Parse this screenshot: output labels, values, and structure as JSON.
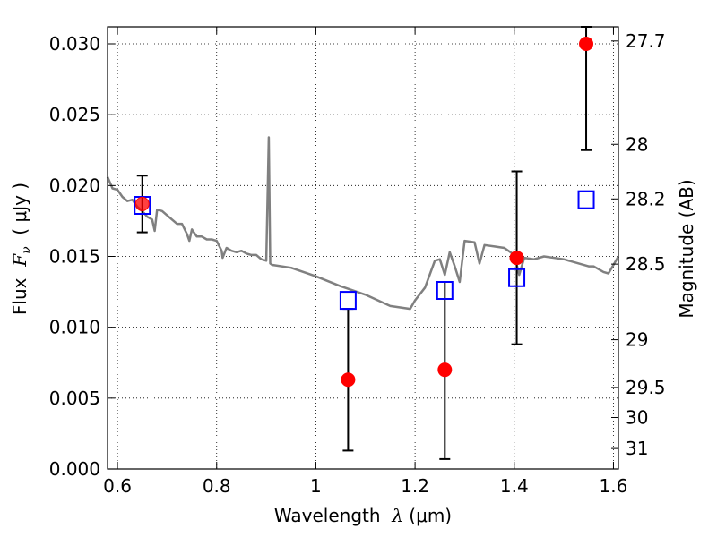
{
  "chart_data": {
    "type": "scatter",
    "xlabel_prefix": "Wavelength  ",
    "xlabel_symbol": "λ",
    "xlabel_unit": " (μm)",
    "ylabel_prefix": "Flux  ",
    "ylabel_symbol": "F",
    "ylabel_subscript": "ν",
    "ylabel_unit": "  ( μJy )",
    "y2label": "Magnitude (AB)",
    "xlim": [
      0.58,
      1.61
    ],
    "ylim": [
      0.0,
      0.0312
    ],
    "grid": true,
    "x_ticks": [
      {
        "v": 0.6,
        "label": "0.6"
      },
      {
        "v": 0.8,
        "label": "0.8"
      },
      {
        "v": 1.0,
        "label": "1"
      },
      {
        "v": 1.2,
        "label": "1.2"
      },
      {
        "v": 1.4,
        "label": "1.4"
      },
      {
        "v": 1.6,
        "label": "1.6"
      }
    ],
    "y_ticks": [
      {
        "v": 0.0,
        "label": "0.000"
      },
      {
        "v": 0.005,
        "label": "0.005"
      },
      {
        "v": 0.01,
        "label": "0.010"
      },
      {
        "v": 0.015,
        "label": "0.015"
      },
      {
        "v": 0.02,
        "label": "0.020"
      },
      {
        "v": 0.025,
        "label": "0.025"
      },
      {
        "v": 0.03,
        "label": "0.030"
      }
    ],
    "mag_ticks": [
      {
        "v": 27.7,
        "label": "27.7"
      },
      {
        "v": 28.0,
        "label": "28"
      },
      {
        "v": 28.2,
        "label": "28.2"
      },
      {
        "v": 28.5,
        "label": "28.5"
      },
      {
        "v": 29.0,
        "label": "29"
      },
      {
        "v": 29.5,
        "label": "29.5"
      },
      {
        "v": 30.0,
        "label": "30"
      },
      {
        "v": 31.0,
        "label": "31"
      }
    ],
    "series": [
      {
        "kind": "observed",
        "marker": "circle",
        "color": "#ff0000",
        "x": [
          0.65,
          1.065,
          1.26,
          1.405,
          1.545
        ],
        "y": [
          0.0187,
          0.0063,
          0.007,
          0.0149,
          0.03
        ],
        "err_low": [
          0.0167,
          0.0013,
          0.0007,
          0.0088,
          0.0225
        ],
        "err_high": [
          0.0207,
          0.0113,
          0.0132,
          0.021,
          0.0312
        ]
      },
      {
        "kind": "model",
        "marker": "square",
        "color": "#0000ff",
        "x": [
          0.65,
          1.065,
          1.26,
          1.405,
          1.545
        ],
        "y": [
          0.0186,
          0.0119,
          0.0126,
          0.0135,
          0.019
        ]
      },
      {
        "kind": "sed",
        "marker": "line",
        "color": "#808080",
        "x": [
          0.58,
          0.59,
          0.6,
          0.61,
          0.62,
          0.63,
          0.64,
          0.65,
          0.66,
          0.67,
          0.675,
          0.68,
          0.69,
          0.7,
          0.71,
          0.72,
          0.73,
          0.74,
          0.745,
          0.75,
          0.76,
          0.77,
          0.78,
          0.79,
          0.8,
          0.81,
          0.812,
          0.82,
          0.83,
          0.84,
          0.85,
          0.86,
          0.87,
          0.88,
          0.89,
          0.9,
          0.905,
          0.908,
          0.912,
          0.95,
          1.0,
          1.05,
          1.1,
          1.15,
          1.19,
          1.2,
          1.22,
          1.24,
          1.25,
          1.26,
          1.27,
          1.28,
          1.29,
          1.3,
          1.32,
          1.33,
          1.34,
          1.36,
          1.38,
          1.4,
          1.41,
          1.42,
          1.44,
          1.46,
          1.5,
          1.55,
          1.56,
          1.58,
          1.59,
          1.6,
          1.61
        ],
        "y": [
          0.0206,
          0.0198,
          0.0197,
          0.0192,
          0.0189,
          0.019,
          0.0185,
          0.0182,
          0.0178,
          0.0176,
          0.0168,
          0.0183,
          0.0182,
          0.0179,
          0.0176,
          0.0173,
          0.0173,
          0.0166,
          0.0161,
          0.0169,
          0.0164,
          0.0164,
          0.0162,
          0.0162,
          0.0161,
          0.0154,
          0.0149,
          0.0156,
          0.0154,
          0.0153,
          0.0154,
          0.0152,
          0.0151,
          0.0151,
          0.0148,
          0.0147,
          0.0234,
          0.0145,
          0.0144,
          0.0142,
          0.0136,
          0.0129,
          0.0123,
          0.0115,
          0.0113,
          0.0119,
          0.0128,
          0.0147,
          0.0148,
          0.0137,
          0.0153,
          0.0143,
          0.0132,
          0.0161,
          0.016,
          0.0145,
          0.0158,
          0.0157,
          0.0156,
          0.0151,
          0.0137,
          0.0149,
          0.0148,
          0.015,
          0.0148,
          0.0143,
          0.0143,
          0.0139,
          0.0138,
          0.0144,
          0.015
        ]
      }
    ]
  }
}
